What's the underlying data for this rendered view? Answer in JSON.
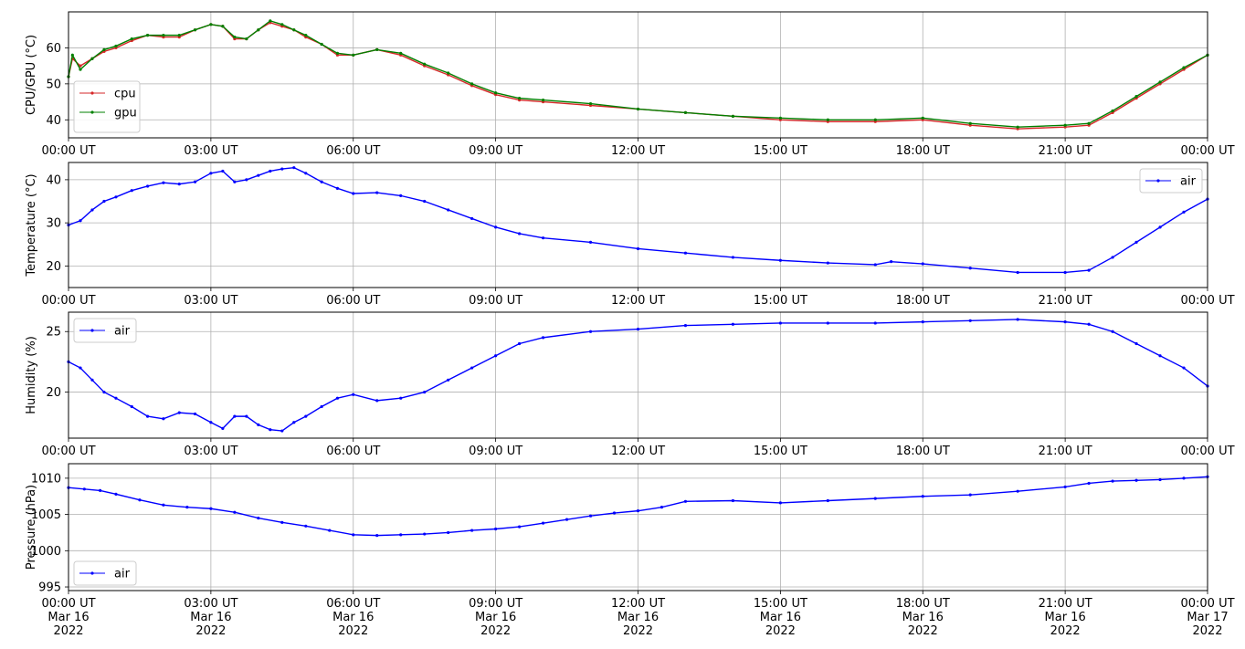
{
  "chart_data": [
    {
      "type": "line",
      "ylabel": "CPU/GPU (°C)",
      "xlim": [
        "2022-03-16T00:00",
        "2022-03-17T00:00"
      ],
      "ylim": [
        35,
        70
      ],
      "yticks": [
        40,
        50,
        60
      ],
      "xtick_labels": [
        "00:00 UT",
        "03:00 UT",
        "06:00 UT",
        "09:00 UT",
        "12:00 UT",
        "15:00 UT",
        "18:00 UT",
        "21:00 UT",
        "00:00 UT"
      ],
      "grid": true,
      "legend": "lower-left",
      "series": [
        {
          "name": "cpu",
          "color": "#d62728",
          "x": [
            "2022-03-16T00:00",
            "2022-03-16T00:05",
            "2022-03-16T00:15",
            "2022-03-16T00:30",
            "2022-03-16T00:45",
            "2022-03-16T01:00",
            "2022-03-16T01:20",
            "2022-03-16T01:40",
            "2022-03-16T02:00",
            "2022-03-16T02:20",
            "2022-03-16T02:40",
            "2022-03-16T03:00",
            "2022-03-16T03:15",
            "2022-03-16T03:30",
            "2022-03-16T03:45",
            "2022-03-16T04:00",
            "2022-03-16T04:15",
            "2022-03-16T04:30",
            "2022-03-16T04:45",
            "2022-03-16T05:00",
            "2022-03-16T05:20",
            "2022-03-16T05:40",
            "2022-03-16T06:00",
            "2022-03-16T06:30",
            "2022-03-16T07:00",
            "2022-03-16T07:30",
            "2022-03-16T08:00",
            "2022-03-16T08:30",
            "2022-03-16T09:00",
            "2022-03-16T09:30",
            "2022-03-16T10:00",
            "2022-03-16T11:00",
            "2022-03-16T12:00",
            "2022-03-16T13:00",
            "2022-03-16T14:00",
            "2022-03-16T15:00",
            "2022-03-16T16:00",
            "2022-03-16T17:00",
            "2022-03-16T18:00",
            "2022-03-16T19:00",
            "2022-03-16T20:00",
            "2022-03-16T21:00",
            "2022-03-16T21:30",
            "2022-03-16T22:00",
            "2022-03-16T22:30",
            "2022-03-16T23:00",
            "2022-03-16T23:30",
            "2022-03-17T00:00"
          ],
          "values": [
            52,
            57,
            55,
            57,
            59,
            60,
            62,
            63.5,
            63,
            63,
            65,
            66.5,
            66,
            62.5,
            62.5,
            65,
            67,
            66,
            65,
            63,
            61,
            58,
            58,
            59.5,
            58,
            55,
            52.5,
            49.5,
            47,
            45.5,
            45,
            44,
            43,
            42,
            41,
            40,
            39.5,
            39.5,
            40,
            38.5,
            37.5,
            38,
            38.5,
            42,
            46,
            50,
            54,
            58
          ]
        },
        {
          "name": "gpu",
          "color": "#008000",
          "x": [
            "2022-03-16T00:00",
            "2022-03-16T00:05",
            "2022-03-16T00:15",
            "2022-03-16T00:30",
            "2022-03-16T00:45",
            "2022-03-16T01:00",
            "2022-03-16T01:20",
            "2022-03-16T01:40",
            "2022-03-16T02:00",
            "2022-03-16T02:20",
            "2022-03-16T02:40",
            "2022-03-16T03:00",
            "2022-03-16T03:15",
            "2022-03-16T03:30",
            "2022-03-16T03:45",
            "2022-03-16T04:00",
            "2022-03-16T04:15",
            "2022-03-16T04:30",
            "2022-03-16T04:45",
            "2022-03-16T05:00",
            "2022-03-16T05:20",
            "2022-03-16T05:40",
            "2022-03-16T06:00",
            "2022-03-16T06:30",
            "2022-03-16T07:00",
            "2022-03-16T07:30",
            "2022-03-16T08:00",
            "2022-03-16T08:30",
            "2022-03-16T09:00",
            "2022-03-16T09:30",
            "2022-03-16T10:00",
            "2022-03-16T11:00",
            "2022-03-16T12:00",
            "2022-03-16T13:00",
            "2022-03-16T14:00",
            "2022-03-16T15:00",
            "2022-03-16T16:00",
            "2022-03-16T17:00",
            "2022-03-16T18:00",
            "2022-03-16T19:00",
            "2022-03-16T20:00",
            "2022-03-16T21:00",
            "2022-03-16T21:30",
            "2022-03-16T22:00",
            "2022-03-16T22:30",
            "2022-03-16T23:00",
            "2022-03-16T23:30",
            "2022-03-17T00:00"
          ],
          "values": [
            52,
            58,
            54,
            57,
            59.5,
            60.5,
            62.5,
            63.5,
            63.5,
            63.5,
            65,
            66.5,
            66,
            63,
            62.5,
            65,
            67.5,
            66.5,
            65,
            63.5,
            61,
            58.5,
            58,
            59.5,
            58.5,
            55.5,
            53,
            50,
            47.5,
            46,
            45.5,
            44.5,
            43,
            42,
            41,
            40.5,
            40,
            40,
            40.5,
            39,
            38,
            38.5,
            39,
            42.5,
            46.5,
            50.5,
            54.5,
            58
          ]
        }
      ]
    },
    {
      "type": "line",
      "ylabel": "Temperature (°C)",
      "xlim": [
        "2022-03-16T00:00",
        "2022-03-17T00:00"
      ],
      "ylim": [
        15,
        44
      ],
      "yticks": [
        20,
        30,
        40
      ],
      "xtick_labels": [
        "00:00 UT",
        "03:00 UT",
        "06:00 UT",
        "09:00 UT",
        "12:00 UT",
        "15:00 UT",
        "18:00 UT",
        "21:00 UT",
        "00:00 UT"
      ],
      "grid": true,
      "legend": "upper-right",
      "series": [
        {
          "name": "air",
          "color": "#0000ff",
          "x": [
            "2022-03-16T00:00",
            "2022-03-16T00:15",
            "2022-03-16T00:30",
            "2022-03-16T00:45",
            "2022-03-16T01:00",
            "2022-03-16T01:20",
            "2022-03-16T01:40",
            "2022-03-16T02:00",
            "2022-03-16T02:20",
            "2022-03-16T02:40",
            "2022-03-16T03:00",
            "2022-03-16T03:15",
            "2022-03-16T03:30",
            "2022-03-16T03:45",
            "2022-03-16T04:00",
            "2022-03-16T04:15",
            "2022-03-16T04:30",
            "2022-03-16T04:45",
            "2022-03-16T05:00",
            "2022-03-16T05:20",
            "2022-03-16T05:40",
            "2022-03-16T06:00",
            "2022-03-16T06:30",
            "2022-03-16T07:00",
            "2022-03-16T07:30",
            "2022-03-16T08:00",
            "2022-03-16T08:30",
            "2022-03-16T09:00",
            "2022-03-16T09:30",
            "2022-03-16T10:00",
            "2022-03-16T11:00",
            "2022-03-16T12:00",
            "2022-03-16T13:00",
            "2022-03-16T14:00",
            "2022-03-16T15:00",
            "2022-03-16T16:00",
            "2022-03-16T17:00",
            "2022-03-16T17:20",
            "2022-03-16T18:00",
            "2022-03-16T19:00",
            "2022-03-16T20:00",
            "2022-03-16T21:00",
            "2022-03-16T21:30",
            "2022-03-16T22:00",
            "2022-03-16T22:30",
            "2022-03-16T23:00",
            "2022-03-16T23:30",
            "2022-03-17T00:00"
          ],
          "values": [
            29.5,
            30.5,
            33,
            35,
            36,
            37.5,
            38.5,
            39.3,
            39,
            39.5,
            41.5,
            42,
            39.5,
            40,
            41,
            42,
            42.5,
            42.8,
            41.5,
            39.5,
            38,
            36.8,
            37,
            36.3,
            35,
            33,
            31,
            29,
            27.5,
            26.5,
            25.5,
            24,
            23,
            22,
            21.3,
            20.7,
            20.3,
            21,
            20.5,
            19.5,
            18.5,
            18.5,
            19,
            22,
            25.5,
            29,
            32.5,
            35.5
          ]
        }
      ]
    },
    {
      "type": "line",
      "ylabel": "Humidity (%)",
      "xlim": [
        "2022-03-16T00:00",
        "2022-03-17T00:00"
      ],
      "ylim": [
        16.2,
        26.6
      ],
      "yticks": [
        20,
        25
      ],
      "xtick_labels": [
        "00:00 UT",
        "03:00 UT",
        "06:00 UT",
        "09:00 UT",
        "12:00 UT",
        "15:00 UT",
        "18:00 UT",
        "21:00 UT",
        "00:00 UT"
      ],
      "grid": true,
      "legend": "upper-left",
      "series": [
        {
          "name": "air",
          "color": "#0000ff",
          "x": [
            "2022-03-16T00:00",
            "2022-03-16T00:15",
            "2022-03-16T00:30",
            "2022-03-16T00:45",
            "2022-03-16T01:00",
            "2022-03-16T01:20",
            "2022-03-16T01:40",
            "2022-03-16T02:00",
            "2022-03-16T02:20",
            "2022-03-16T02:40",
            "2022-03-16T03:00",
            "2022-03-16T03:15",
            "2022-03-16T03:30",
            "2022-03-16T03:45",
            "2022-03-16T04:00",
            "2022-03-16T04:15",
            "2022-03-16T04:30",
            "2022-03-16T04:45",
            "2022-03-16T05:00",
            "2022-03-16T05:20",
            "2022-03-16T05:40",
            "2022-03-16T06:00",
            "2022-03-16T06:30",
            "2022-03-16T07:00",
            "2022-03-16T07:30",
            "2022-03-16T08:00",
            "2022-03-16T08:30",
            "2022-03-16T09:00",
            "2022-03-16T09:30",
            "2022-03-16T10:00",
            "2022-03-16T11:00",
            "2022-03-16T12:00",
            "2022-03-16T13:00",
            "2022-03-16T14:00",
            "2022-03-16T15:00",
            "2022-03-16T16:00",
            "2022-03-16T17:00",
            "2022-03-16T18:00",
            "2022-03-16T19:00",
            "2022-03-16T20:00",
            "2022-03-16T21:00",
            "2022-03-16T21:30",
            "2022-03-16T22:00",
            "2022-03-16T22:30",
            "2022-03-16T23:00",
            "2022-03-16T23:30",
            "2022-03-17T00:00"
          ],
          "values": [
            22.5,
            22,
            21,
            20,
            19.5,
            18.8,
            18,
            17.8,
            18.3,
            18.2,
            17.5,
            17,
            18,
            18,
            17.3,
            16.9,
            16.8,
            17.5,
            18,
            18.8,
            19.5,
            19.8,
            19.3,
            19.5,
            20,
            21,
            22,
            23,
            24,
            24.5,
            25,
            25.2,
            25.5,
            25.6,
            25.7,
            25.7,
            25.7,
            25.8,
            25.9,
            26,
            25.8,
            25.6,
            25,
            24,
            23,
            22,
            20.5
          ]
        }
      ]
    },
    {
      "type": "line",
      "ylabel": "Pressure (hPa)",
      "xlim": [
        "2022-03-16T00:00",
        "2022-03-17T00:00"
      ],
      "ylim": [
        994.5,
        1012
      ],
      "yticks": [
        995,
        1000,
        1005,
        1010
      ],
      "xtick_labels": [
        "00:00 UT\nMar 16\n2022",
        "03:00 UT\nMar 16\n2022",
        "06:00 UT\nMar 16\n2022",
        "09:00 UT\nMar 16\n2022",
        "12:00 UT\nMar 16\n2022",
        "15:00 UT\nMar 16\n2022",
        "18:00 UT\nMar 16\n2022",
        "21:00 UT\nMar 16\n2022",
        "00:00 UT\nMar 17\n2022"
      ],
      "grid": true,
      "legend": "lower-left",
      "series": [
        {
          "name": "air",
          "color": "#0000ff",
          "x": [
            "2022-03-16T00:00",
            "2022-03-16T00:20",
            "2022-03-16T00:40",
            "2022-03-16T01:00",
            "2022-03-16T01:30",
            "2022-03-16T02:00",
            "2022-03-16T02:30",
            "2022-03-16T03:00",
            "2022-03-16T03:30",
            "2022-03-16T04:00",
            "2022-03-16T04:30",
            "2022-03-16T05:00",
            "2022-03-16T05:30",
            "2022-03-16T06:00",
            "2022-03-16T06:30",
            "2022-03-16T07:00",
            "2022-03-16T07:30",
            "2022-03-16T08:00",
            "2022-03-16T08:30",
            "2022-03-16T09:00",
            "2022-03-16T09:30",
            "2022-03-16T10:00",
            "2022-03-16T10:30",
            "2022-03-16T11:00",
            "2022-03-16T11:30",
            "2022-03-16T12:00",
            "2022-03-16T12:30",
            "2022-03-16T13:00",
            "2022-03-16T14:00",
            "2022-03-16T15:00",
            "2022-03-16T16:00",
            "2022-03-16T17:00",
            "2022-03-16T18:00",
            "2022-03-16T19:00",
            "2022-03-16T20:00",
            "2022-03-16T21:00",
            "2022-03-16T21:30",
            "2022-03-16T22:00",
            "2022-03-16T22:30",
            "2022-03-16T23:00",
            "2022-03-16T23:30",
            "2022-03-17T00:00"
          ],
          "values": [
            1008.7,
            1008.5,
            1008.3,
            1007.8,
            1007,
            1006.3,
            1006,
            1005.8,
            1005.3,
            1004.5,
            1003.9,
            1003.4,
            1002.8,
            1002.2,
            1002.1,
            1002.2,
            1002.3,
            1002.5,
            1002.8,
            1003,
            1003.3,
            1003.8,
            1004.3,
            1004.8,
            1005.2,
            1005.5,
            1006,
            1006.8,
            1006.9,
            1006.6,
            1006.9,
            1007.2,
            1007.5,
            1007.7,
            1008.2,
            1008.8,
            1009.3,
            1009.6,
            1009.7,
            1009.8,
            1010,
            1010.2
          ]
        }
      ]
    }
  ]
}
